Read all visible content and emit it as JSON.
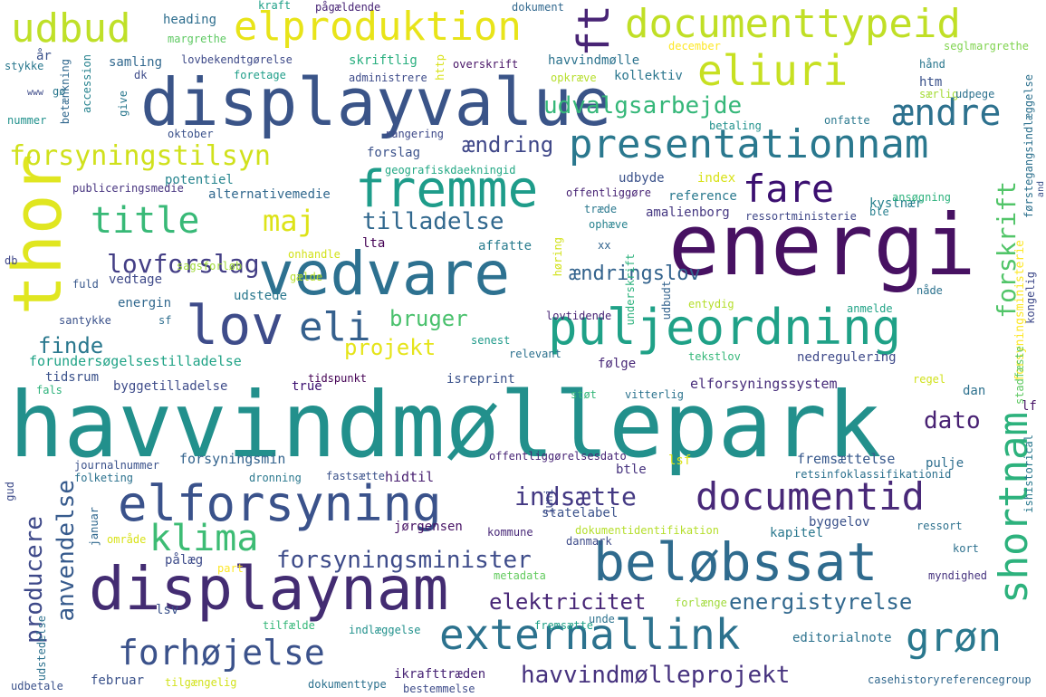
{
  "words": [
    {
      "text": "havvindmøllepark",
      "color": "#22908c"
    },
    {
      "text": "energi",
      "color": "#471162"
    },
    {
      "text": "displayvalue",
      "color": "#3a5488"
    },
    {
      "text": "vedvare",
      "color": "#2d7190"
    },
    {
      "text": "displaynam",
      "color": "#432c72"
    },
    {
      "text": "elforsyning",
      "color": "#3a528b"
    },
    {
      "text": "beløbssat",
      "color": "#2f6b8e"
    },
    {
      "text": "presentationnam",
      "color": "#2a788e"
    },
    {
      "text": "documenttypeid",
      "color": "#c0df26"
    },
    {
      "text": "puljeordning",
      "color": "#1fa187"
    },
    {
      "text": "fremme",
      "color": "#1e9c8a"
    },
    {
      "text": "thor",
      "color": "#e0e620"
    },
    {
      "text": "lov",
      "color": "#3e4c8a"
    },
    {
      "text": "eliuri",
      "color": "#c7e021"
    },
    {
      "text": "elproduktion",
      "color": "#e8e419"
    },
    {
      "text": "udbud",
      "color": "#bfe028"
    },
    {
      "text": "documentid",
      "color": "#482878"
    },
    {
      "text": "externallink",
      "color": "#2c728e"
    },
    {
      "text": "forhøjelse",
      "color": "#3b528b"
    },
    {
      "text": "title",
      "color": "#38b977"
    },
    {
      "text": "grøn",
      "color": "#2a788e"
    },
    {
      "text": "eli",
      "color": "#35608d"
    },
    {
      "text": "shortnam",
      "color": "#2db27d"
    },
    {
      "text": "klima",
      "color": "#3dbc74"
    },
    {
      "text": "forsyningstilsyn",
      "color": "#d0e11c"
    },
    {
      "text": "fare",
      "color": "#3b0f70"
    },
    {
      "text": "ændre",
      "color": "#2d718e"
    },
    {
      "text": "maj",
      "color": "#dde318"
    },
    {
      "text": "udvalgsarbejde",
      "color": "#35b779"
    },
    {
      "text": "forskrift",
      "color": "#52c569"
    },
    {
      "text": "ft",
      "color": "#482475"
    },
    {
      "text": "lovforslag",
      "color": "#433e85"
    },
    {
      "text": "tilladelse",
      "color": "#31688e"
    },
    {
      "text": "producere",
      "color": "#3e4989"
    },
    {
      "text": "anvendelse",
      "color": "#375b8d"
    },
    {
      "text": "indsætte",
      "color": "#443983"
    },
    {
      "text": "forsyningsminister",
      "color": "#3e4c8a"
    },
    {
      "text": "havvindmølleprojekt",
      "color": "#46327e"
    },
    {
      "text": "energistyrelse",
      "color": "#31688e"
    },
    {
      "text": "elektricitet",
      "color": "#482777"
    },
    {
      "text": "finde",
      "color": "#2a788e"
    },
    {
      "text": "projekt",
      "color": "#e5e419"
    },
    {
      "text": "bruger",
      "color": "#4ac16d"
    },
    {
      "text": "dato",
      "color": "#482173"
    },
    {
      "text": "ændring",
      "color": "#3f4788"
    },
    {
      "text": "ændringslov",
      "color": "#33638d"
    },
    {
      "text": "forundersøgelsestilladelse",
      "color": "#20a386"
    },
    {
      "text": "elforsyningssystem",
      "color": "#472c7a"
    },
    {
      "text": "heading",
      "color": "#2e6e8e"
    },
    {
      "text": "samling",
      "color": "#31688e"
    },
    {
      "text": "skriftlig",
      "color": "#29af7f"
    },
    {
      "text": "havvindmølle",
      "color": "#2c738e"
    },
    {
      "text": "kollektiv",
      "color": "#2a768e"
    },
    {
      "text": "overskrift",
      "color": "#481467"
    },
    {
      "text": "margrethe",
      "color": "#5ec962"
    },
    {
      "text": "kraft",
      "color": "#1fa088"
    },
    {
      "text": "pågældende",
      "color": "#482576"
    },
    {
      "text": "dokument",
      "color": "#31688e"
    },
    {
      "text": "december",
      "color": "#fde725"
    },
    {
      "text": "seglmargrethe",
      "color": "#7fd34e"
    },
    {
      "text": "lovbekendtgørelse",
      "color": "#3e4a89"
    },
    {
      "text": "foretage",
      "color": "#1f9e89"
    },
    {
      "text": "administrere",
      "color": "#3e4c8a"
    },
    {
      "text": "opkræve",
      "color": "#b5de2b"
    },
    {
      "text": "hånd",
      "color": "#2a778e"
    },
    {
      "text": "htm",
      "color": "#3b528b"
    },
    {
      "text": "særlig",
      "color": "#a5db36"
    },
    {
      "text": "udpege",
      "color": "#2c718e"
    },
    {
      "text": "forsyningsministerie",
      "color": "#fde725"
    },
    {
      "text": "betaling",
      "color": "#21918c"
    },
    {
      "text": "onfatte",
      "color": "#2a788e"
    },
    {
      "text": "rangering",
      "color": "#3e4989"
    },
    {
      "text": "forslag",
      "color": "#3b528b"
    },
    {
      "text": "potentiel",
      "color": "#25848e"
    },
    {
      "text": "alternativemedie",
      "color": "#31688e"
    },
    {
      "text": "publiceringsmedie",
      "color": "#46337f"
    },
    {
      "text": "geografiskdaekningid",
      "color": "#22a884"
    },
    {
      "text": "offentliggøre",
      "color": "#482475"
    },
    {
      "text": "udbyde",
      "color": "#3b528b"
    },
    {
      "text": "index",
      "color": "#d8e219"
    },
    {
      "text": "reference",
      "color": "#29798e"
    },
    {
      "text": "kystnær",
      "color": "#27808e"
    },
    {
      "text": "ansøgning",
      "color": "#2db27d"
    },
    {
      "text": "amalienborg",
      "color": "#453781"
    },
    {
      "text": "ophæve",
      "color": "#26828e"
    },
    {
      "text": "ressortministerie",
      "color": "#3f4788"
    },
    {
      "text": "ble",
      "color": "#277f8e"
    },
    {
      "text": "affatte",
      "color": "#287c8e"
    },
    {
      "text": "lta",
      "color": "#440154"
    },
    {
      "text": "xx",
      "color": "#32648e"
    },
    {
      "text": "høring",
      "color": "#d2e21b"
    },
    {
      "text": "vedtage",
      "color": "#3e4989"
    },
    {
      "text": "sagsforløb",
      "color": "#a0da39"
    },
    {
      "text": "fuld",
      "color": "#38588c"
    },
    {
      "text": "db",
      "color": "#3f4788"
    },
    {
      "text": "gælde",
      "color": "#b8de29"
    },
    {
      "text": "onhandle",
      "color": "#d2e21b"
    },
    {
      "text": "udstede",
      "color": "#2a788e"
    },
    {
      "text": "energin",
      "color": "#31688e"
    },
    {
      "text": "santykke",
      "color": "#3b528b"
    },
    {
      "text": "sf",
      "color": "#2e6e8e"
    },
    {
      "text": "lovtidende",
      "color": "#482475"
    },
    {
      "text": "udbudt",
      "color": "#33638d"
    },
    {
      "text": "entydig",
      "color": "#b5de2b"
    },
    {
      "text": "anmelde",
      "color": "#20a386"
    },
    {
      "text": "nåde",
      "color": "#2c728e"
    },
    {
      "text": "nedregulering",
      "color": "#3e4989"
    },
    {
      "text": "følge",
      "color": "#482878"
    },
    {
      "text": "relevant",
      "color": "#2c718e"
    },
    {
      "text": "senest",
      "color": "#1f9a8a"
    },
    {
      "text": "tekstlov",
      "color": "#35b779"
    },
    {
      "text": "tidsrum",
      "color": "#3b528b"
    },
    {
      "text": "tidspunkt",
      "color": "#440154"
    },
    {
      "text": "byggetilladelse",
      "color": "#3e4c8a"
    },
    {
      "text": "true",
      "color": "#3b0f70"
    },
    {
      "text": "isreprint",
      "color": "#3b528b"
    },
    {
      "text": "fals",
      "color": "#2eb37c"
    },
    {
      "text": "støt",
      "color": "#35b779"
    },
    {
      "text": "vitterlig",
      "color": "#2c738e"
    },
    {
      "text": "regel",
      "color": "#d0e11c"
    },
    {
      "text": "dan",
      "color": "#2d718e"
    },
    {
      "text": "lf",
      "color": "#481467"
    },
    {
      "text": "forsyningsmin",
      "color": "#33638d"
    },
    {
      "text": "fremsættelse",
      "color": "#37588c"
    },
    {
      "text": "hidtil",
      "color": "#481f70"
    },
    {
      "text": "btle",
      "color": "#46327e"
    },
    {
      "text": "lsf",
      "color": "#dde318"
    },
    {
      "text": "pulje",
      "color": "#2e6e8e"
    },
    {
      "text": "journalnummer",
      "color": "#3b528b"
    },
    {
      "text": "folketing",
      "color": "#2c728e"
    },
    {
      "text": "dronning",
      "color": "#2a788e"
    },
    {
      "text": "fastsætte",
      "color": "#3b528b"
    },
    {
      "text": "offentliggørelsesdato",
      "color": "#482576"
    },
    {
      "text": "retsinfoklassifikationid",
      "color": "#2c718e"
    },
    {
      "text": "ishistorical",
      "color": "#2a788e"
    },
    {
      "text": "gud",
      "color": "#3e4c8a"
    },
    {
      "text": "statelabel",
      "color": "#3b528b"
    },
    {
      "text": "jørgensen",
      "color": "#471365"
    },
    {
      "text": "kommune",
      "color": "#482878"
    },
    {
      "text": "dokumentidentifikation",
      "color": "#b5de2b"
    },
    {
      "text": "byggelov",
      "color": "#3b528b"
    },
    {
      "text": "ressort",
      "color": "#2d718e"
    },
    {
      "text": "område",
      "color": "#d8e219"
    },
    {
      "text": "danmark",
      "color": "#3e4c8a"
    },
    {
      "text": "kapitel",
      "color": "#2a788e"
    },
    {
      "text": "januar",
      "color": "#31688e"
    },
    {
      "text": "pålæg",
      "color": "#3e4c8a"
    },
    {
      "text": "part",
      "color": "#fde725"
    },
    {
      "text": "metadata",
      "color": "#63cb5f"
    },
    {
      "text": "kort",
      "color": "#2d718e"
    },
    {
      "text": "myndighed",
      "color": "#46337f"
    },
    {
      "text": "lsv",
      "color": "#3b528b"
    },
    {
      "text": "tilfælde",
      "color": "#35b779"
    },
    {
      "text": "indlæggelse",
      "color": "#21918c"
    },
    {
      "text": "unde",
      "color": "#2c728e"
    },
    {
      "text": "fremsætte",
      "color": "#1fa187"
    },
    {
      "text": "forlænge",
      "color": "#a0da39"
    },
    {
      "text": "editorialnote",
      "color": "#2c728e"
    },
    {
      "text": "udstedelse",
      "color": "#2c718e"
    },
    {
      "text": "februar",
      "color": "#3b528b"
    },
    {
      "text": "tilgængelig",
      "color": "#d2e21b"
    },
    {
      "text": "dokumenttype",
      "color": "#2c718e"
    },
    {
      "text": "ikrafttræden",
      "color": "#482475"
    },
    {
      "text": "bestemmelse",
      "color": "#3e4c8a"
    },
    {
      "text": "casehistoryreferencegroup",
      "color": "#31688e"
    },
    {
      "text": "udbetale",
      "color": "#3b528b"
    },
    {
      "text": "accession",
      "color": "#26828e"
    },
    {
      "text": "www",
      "color": "#3e4c8a"
    },
    {
      "text": "gø",
      "color": "#2a788e"
    },
    {
      "text": "år",
      "color": "#3b528b"
    },
    {
      "text": "betænkning",
      "color": "#31688e"
    },
    {
      "text": "nummer",
      "color": "#21918c"
    },
    {
      "text": "stykke",
      "color": "#2a788e"
    },
    {
      "text": "dk",
      "color": "#3e4c8a"
    },
    {
      "text": "give",
      "color": "#2a788e"
    },
    {
      "text": "oktober",
      "color": "#3b528b"
    },
    {
      "text": "http",
      "color": "#d8e219"
    },
    {
      "text": "underskrift",
      "color": "#2db27d"
    },
    {
      "text": "kongelig",
      "color": "#3e4989"
    },
    {
      "text": "førstegangsindlæggelse",
      "color": "#2d718e"
    },
    {
      "text": "and",
      "color": "#3b528b"
    },
    {
      "text": "juni",
      "color": "#3e4989"
    },
    {
      "text": "træde",
      "color": "#2a788e"
    },
    {
      "text": "stadfæste",
      "color": "#5ec962"
    }
  ]
}
